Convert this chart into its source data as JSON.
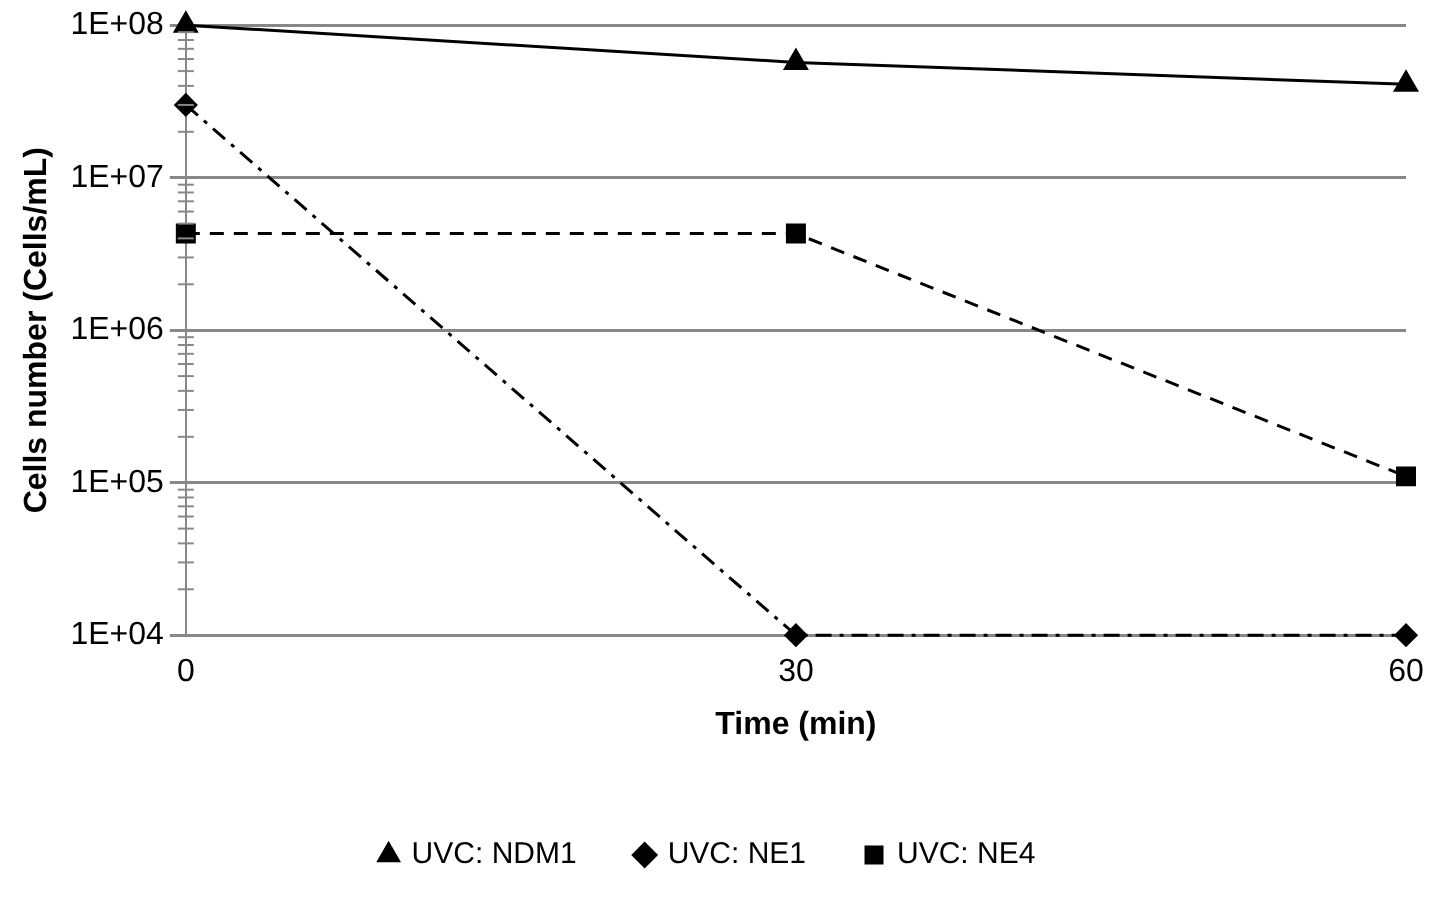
{
  "chart_data": {
    "type": "line",
    "xlabel": "Time (min)",
    "ylabel": "Cells number (Cells/mL)",
    "x": [
      0,
      30,
      60
    ],
    "xlim": [
      0,
      60
    ],
    "xticks": [
      0,
      30,
      60
    ],
    "log": "y",
    "ylim": [
      10000,
      100000000
    ],
    "yticks": [
      {
        "value": 10000,
        "label": "1E+04"
      },
      {
        "value": 100000,
        "label": "1E+05"
      },
      {
        "value": 1000000,
        "label": "1E+06"
      },
      {
        "value": 10000000,
        "label": "1E+07"
      },
      {
        "value": 100000000,
        "label": "1E+08"
      }
    ],
    "grid": "y",
    "legend": "bottom",
    "series": [
      {
        "name": "UVC: NDM1",
        "color": "#000000",
        "values": [
          100000000,
          57000000,
          41000000
        ],
        "marker": "triangle",
        "line_style": "solid"
      },
      {
        "name": "UVC: NE1",
        "color": "#000000",
        "values": [
          30000000,
          10000,
          10000
        ],
        "marker": "diamond",
        "line_style": "dashdot"
      },
      {
        "name": "UVC: NE4",
        "color": "#000000",
        "values": [
          4300000,
          4300000,
          110000
        ],
        "marker": "square",
        "line_style": "dashed"
      }
    ]
  }
}
